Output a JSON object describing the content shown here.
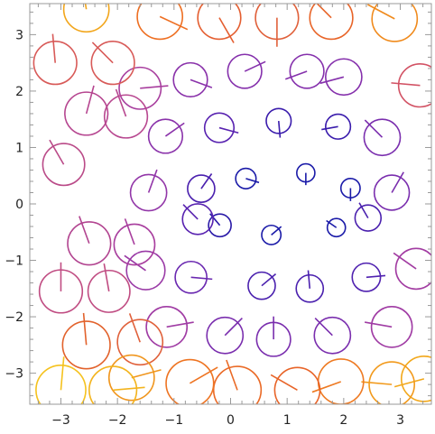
{
  "chart_data": {
    "type": "scatter",
    "title": "",
    "xlabel": "",
    "ylabel": "",
    "xlim": [
      -3.55,
      3.55
    ],
    "ylim": [
      -3.55,
      3.55
    ],
    "x_ticks": [
      -3,
      -2,
      -1,
      0,
      1,
      2,
      3
    ],
    "y_ticks": [
      -3,
      -2,
      -1,
      0,
      1,
      2,
      3
    ],
    "x_tick_labels": [
      "−3",
      "−2",
      "−1",
      "0",
      "1",
      "2",
      "3"
    ],
    "y_tick_labels": [
      "−3",
      "−2",
      "−1",
      "0",
      "1",
      "2",
      "3"
    ],
    "grid": false,
    "frame": true,
    "encoding": "circle radius and color grow with distance from origin; a line segment from each center shows a direction",
    "colors": {
      "near": "#1a1aa8",
      "inner": "#5a24b0",
      "middle": "#9a3aa8",
      "outer": "#c4507a",
      "far": "#e8602a",
      "farthest": "#f2b020",
      "frame": "#999999"
    },
    "points": [
      {
        "x": 0.27,
        "y": 0.45,
        "r": 0.18,
        "angle": -17,
        "color": "#1a1aa8"
      },
      {
        "x": 1.33,
        "y": 0.55,
        "r": 0.16,
        "angle": -90,
        "color": "#1a1aa8"
      },
      {
        "x": 2.12,
        "y": 0.28,
        "r": 0.17,
        "angle": -90,
        "color": "#1a1aa8"
      },
      {
        "x": 1.87,
        "y": -0.42,
        "r": 0.16,
        "angle": 145,
        "color": "#1a1aa8"
      },
      {
        "x": 0.72,
        "y": -0.55,
        "r": 0.17,
        "angle": 40,
        "color": "#1a1aa8"
      },
      {
        "x": -0.19,
        "y": -0.38,
        "r": 0.2,
        "angle": 130,
        "color": "#2a1aa8"
      },
      {
        "x": 0.85,
        "y": 1.47,
        "r": 0.22,
        "angle": -85,
        "color": "#3a1cac"
      },
      {
        "x": 1.9,
        "y": 1.37,
        "r": 0.22,
        "angle": 190,
        "color": "#3a1cac"
      },
      {
        "x": 2.43,
        "y": -0.25,
        "r": 0.23,
        "angle": 120,
        "color": "#4a20ae"
      },
      {
        "x": 2.4,
        "y": -1.3,
        "r": 0.25,
        "angle": 5,
        "color": "#5022b0"
      },
      {
        "x": 1.4,
        "y": -1.5,
        "r": 0.24,
        "angle": 95,
        "color": "#4a20ae"
      },
      {
        "x": 0.55,
        "y": -1.45,
        "r": 0.24,
        "angle": 40,
        "color": "#4a20ae"
      },
      {
        "x": -0.52,
        "y": 0.27,
        "r": 0.24,
        "angle": 55,
        "color": "#4a20ae"
      },
      {
        "x": -0.2,
        "y": 1.35,
        "r": 0.26,
        "angle": -15,
        "color": "#5822b0"
      },
      {
        "x": -0.58,
        "y": -0.27,
        "r": 0.27,
        "angle": 135,
        "color": "#5822b0"
      },
      {
        "x": -0.7,
        "y": -1.3,
        "r": 0.28,
        "angle": -5,
        "color": "#6a28b0"
      },
      {
        "x": 0.76,
        "y": -2.4,
        "r": 0.3,
        "angle": 90,
        "color": "#7a2eae"
      },
      {
        "x": -0.1,
        "y": -2.33,
        "r": 0.32,
        "angle": 45,
        "color": "#7a2eae"
      },
      {
        "x": 1.8,
        "y": -2.33,
        "r": 0.32,
        "angle": 135,
        "color": "#7a2eae"
      },
      {
        "x": 2.85,
        "y": 0.2,
        "r": 0.31,
        "angle": 60,
        "color": "#7a2eae"
      },
      {
        "x": 2.68,
        "y": 1.18,
        "r": 0.32,
        "angle": 135,
        "color": "#7a2eae"
      },
      {
        "x": 2.0,
        "y": 2.25,
        "r": 0.32,
        "angle": 195,
        "color": "#8530ac"
      },
      {
        "x": 1.35,
        "y": 2.35,
        "r": 0.3,
        "angle": 200,
        "color": "#8530ac"
      },
      {
        "x": 0.25,
        "y": 2.35,
        "r": 0.3,
        "angle": 25,
        "color": "#8530ac"
      },
      {
        "x": -0.71,
        "y": 2.2,
        "r": 0.3,
        "angle": -20,
        "color": "#8a32aa"
      },
      {
        "x": -1.15,
        "y": 1.2,
        "r": 0.3,
        "angle": 35,
        "color": "#8a32aa"
      },
      {
        "x": -1.45,
        "y": 0.2,
        "r": 0.32,
        "angle": 70,
        "color": "#9236a8"
      },
      {
        "x": -1.5,
        "y": -1.18,
        "r": 0.34,
        "angle": 145,
        "color": "#9a3aa6"
      },
      {
        "x": -1.13,
        "y": -2.18,
        "r": 0.36,
        "angle": 10,
        "color": "#a03ca4"
      },
      {
        "x": 2.85,
        "y": -2.18,
        "r": 0.36,
        "angle": 170,
        "color": "#a03ca4"
      },
      {
        "x": 3.28,
        "y": -1.15,
        "r": 0.36,
        "angle": 145,
        "color": "#a23ca2"
      },
      {
        "x": -1.6,
        "y": 2.05,
        "r": 0.37,
        "angle": 5,
        "color": "#a83e9e"
      },
      {
        "x": -1.7,
        "y": -0.72,
        "r": 0.36,
        "angle": 110,
        "color": "#a83e9e"
      },
      {
        "x": -2.5,
        "y": -0.7,
        "r": 0.38,
        "angle": 110,
        "color": "#b24490"
      },
      {
        "x": -2.55,
        "y": 1.6,
        "r": 0.38,
        "angle": 75,
        "color": "#b64690"
      },
      {
        "x": -1.85,
        "y": 1.55,
        "r": 0.38,
        "angle": 110,
        "color": "#b84890"
      },
      {
        "x": -2.95,
        "y": 0.7,
        "r": 0.37,
        "angle": 120,
        "color": "#ba4a88"
      },
      {
        "x": -3.0,
        "y": -1.55,
        "r": 0.38,
        "angle": 90,
        "color": "#c04c82"
      },
      {
        "x": -2.15,
        "y": -1.55,
        "r": 0.37,
        "angle": 100,
        "color": "#c04c82"
      },
      {
        "x": 3.35,
        "y": 2.1,
        "r": 0.38,
        "angle": 175,
        "color": "#d25264"
      },
      {
        "x": -3.1,
        "y": 2.5,
        "r": 0.38,
        "angle": 95,
        "color": "#d85a58"
      },
      {
        "x": -2.08,
        "y": 2.5,
        "r": 0.38,
        "angle": 135,
        "color": "#d85a58"
      },
      {
        "x": -1.6,
        "y": -2.45,
        "r": 0.4,
        "angle": 110,
        "color": "#e0603a"
      },
      {
        "x": -2.55,
        "y": -2.5,
        "r": 0.42,
        "angle": 95,
        "color": "#e2622c"
      },
      {
        "x": 0.82,
        "y": 3.3,
        "r": 0.38,
        "angle": -90,
        "color": "#e0603a"
      },
      {
        "x": -0.2,
        "y": 3.3,
        "r": 0.38,
        "angle": -60,
        "color": "#e45e30"
      },
      {
        "x": 1.78,
        "y": 3.3,
        "r": 0.38,
        "angle": 135,
        "color": "#e86428"
      },
      {
        "x": -1.25,
        "y": 3.32,
        "r": 0.4,
        "angle": -25,
        "color": "#ee6f22"
      },
      {
        "x": 2.9,
        "y": 3.28,
        "r": 0.4,
        "angle": 152,
        "color": "#f08a1c"
      },
      {
        "x": -2.55,
        "y": 3.45,
        "r": 0.4,
        "angle": 100,
        "color": "#f2a61c"
      },
      {
        "x": 3.42,
        "y": -3.1,
        "r": 0.4,
        "angle": -165,
        "color": "#f2a81c"
      },
      {
        "x": 2.85,
        "y": -3.2,
        "r": 0.4,
        "angle": 175,
        "color": "#f29a1c"
      },
      {
        "x": 1.95,
        "y": -3.15,
        "r": 0.4,
        "angle": -160,
        "color": "#ee7a22"
      },
      {
        "x": 1.18,
        "y": -3.3,
        "r": 0.4,
        "angle": 150,
        "color": "#e86428"
      },
      {
        "x": 0.12,
        "y": -3.3,
        "r": 0.42,
        "angle": 110,
        "color": "#ea6a26"
      },
      {
        "x": -0.72,
        "y": -3.18,
        "r": 0.42,
        "angle": 30,
        "color": "#ee7422"
      },
      {
        "x": -1.75,
        "y": -3.08,
        "r": 0.4,
        "angle": 15,
        "color": "#f0961e"
      },
      {
        "x": -2.08,
        "y": -3.3,
        "r": 0.42,
        "angle": 5,
        "color": "#f3b41e"
      },
      {
        "x": -3.0,
        "y": -3.3,
        "r": 0.44,
        "angle": 85,
        "color": "#f5c21e"
      }
    ]
  }
}
